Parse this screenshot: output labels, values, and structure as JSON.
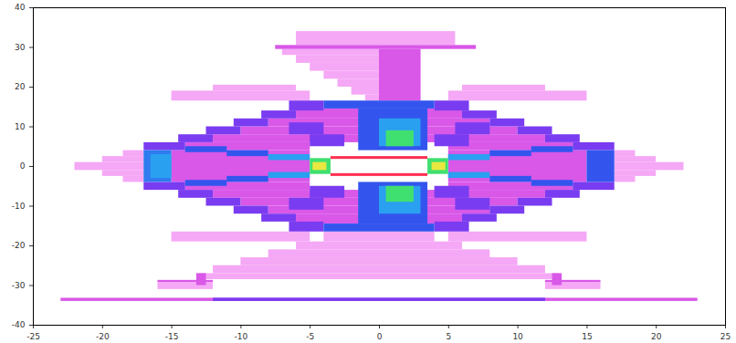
{
  "chart_data": {
    "type": "heatmap",
    "xlim": [
      -25,
      25
    ],
    "xticks": [
      -25,
      -20,
      -15,
      -10,
      -5,
      0,
      5,
      10,
      15,
      20,
      25
    ],
    "ylim": [
      -40,
      40
    ],
    "yticks": [
      -40,
      -30,
      -20,
      -10,
      0,
      10,
      20,
      30,
      40
    ],
    "grid": false,
    "cells": [
      {
        "x0": -6,
        "x1": 5.5,
        "y0": 30.5,
        "y1": 34,
        "value": 1
      },
      {
        "x0": -7,
        "x1": 3,
        "y0": 28,
        "y1": 29.5,
        "value": 1
      },
      {
        "x0": -6,
        "x1": 3,
        "y0": 26,
        "y1": 28,
        "value": 1
      },
      {
        "x0": -5,
        "x1": 3,
        "y0": 24,
        "y1": 26,
        "value": 1
      },
      {
        "x0": -4,
        "x1": 3,
        "y0": 22,
        "y1": 24,
        "value": 1
      },
      {
        "x0": -3,
        "x1": 3,
        "y0": 20,
        "y1": 22,
        "value": 1
      },
      {
        "x0": -2,
        "x1": 3,
        "y0": 18,
        "y1": 20,
        "value": 1
      },
      {
        "x0": -1,
        "x1": 3,
        "y0": 16.5,
        "y1": 18,
        "value": 1
      },
      {
        "x0": -15,
        "x1": -5,
        "y0": 16.5,
        "y1": 19,
        "value": 1
      },
      {
        "x0": 5,
        "x1": 15,
        "y0": 16.5,
        "y1": 19,
        "value": 1
      },
      {
        "x0": -12,
        "x1": -6,
        "y0": 19,
        "y1": 20.5,
        "value": 1
      },
      {
        "x0": 6,
        "x1": 12,
        "y0": 19,
        "y1": 20.5,
        "value": 1
      },
      {
        "x0": -22,
        "x1": -17,
        "y0": -1,
        "y1": 1,
        "value": 1
      },
      {
        "x0": -20,
        "x1": -17,
        "y0": 1,
        "y1": 2.5,
        "value": 1
      },
      {
        "x0": -20,
        "x1": -17,
        "y0": -2.5,
        "y1": -1,
        "value": 1
      },
      {
        "x0": -18.5,
        "x1": -17,
        "y0": 2.5,
        "y1": 4,
        "value": 1
      },
      {
        "x0": -18.5,
        "x1": -17,
        "y0": -4,
        "y1": -2.5,
        "value": 1
      },
      {
        "x0": 17,
        "x1": 22,
        "y0": -1,
        "y1": 1,
        "value": 1
      },
      {
        "x0": 17,
        "x1": 20,
        "y0": 1,
        "y1": 2.5,
        "value": 1
      },
      {
        "x0": 17,
        "x1": 20,
        "y0": -2.5,
        "y1": -1,
        "value": 1
      },
      {
        "x0": 17,
        "x1": 18.5,
        "y0": 2.5,
        "y1": 4,
        "value": 1
      },
      {
        "x0": 17,
        "x1": 18.5,
        "y0": -4,
        "y1": -2.5,
        "value": 1
      },
      {
        "x0": -15,
        "x1": -5,
        "y0": -19,
        "y1": -16.5,
        "value": 1
      },
      {
        "x0": 5,
        "x1": 15,
        "y0": -19,
        "y1": -16.5,
        "value": 1
      },
      {
        "x0": -4,
        "x1": 4,
        "y0": -19,
        "y1": -16.5,
        "value": 1
      },
      {
        "x0": -6,
        "x1": 6,
        "y0": -21,
        "y1": -19,
        "value": 1
      },
      {
        "x0": -8,
        "x1": 8,
        "y0": -23,
        "y1": -21,
        "value": 1
      },
      {
        "x0": -10,
        "x1": 10,
        "y0": -25,
        "y1": -23,
        "value": 1
      },
      {
        "x0": -12,
        "x1": 12,
        "y0": -27,
        "y1": -25,
        "value": 1
      },
      {
        "x0": -13,
        "x1": 13,
        "y0": -28.5,
        "y1": -27,
        "value": 1
      },
      {
        "x0": -16,
        "x1": -12,
        "y0": -31,
        "y1": -29.2,
        "value": 1
      },
      {
        "x0": 12,
        "x1": 16,
        "y0": -31,
        "y1": -29.2,
        "value": 1
      },
      {
        "x0": -7.5,
        "x1": 7,
        "y0": 29.5,
        "y1": 30.5,
        "value": 2
      },
      {
        "x0": 0,
        "x1": 3,
        "y0": 16.5,
        "y1": 29.5,
        "value": 2
      },
      {
        "x0": -6,
        "x1": 6,
        "y0": 12,
        "y1": 14.5,
        "value": 2
      },
      {
        "x0": -8,
        "x1": 8,
        "y0": 10,
        "y1": 12,
        "value": 2
      },
      {
        "x0": -10,
        "x1": 10,
        "y0": 8,
        "y1": 10,
        "value": 2
      },
      {
        "x0": -12,
        "x1": 12,
        "y0": 6,
        "y1": 8,
        "value": 2
      },
      {
        "x0": -14,
        "x1": -5,
        "y0": 4,
        "y1": 6,
        "value": 2
      },
      {
        "x0": 5,
        "x1": 14,
        "y0": 4,
        "y1": 6,
        "value": 2
      },
      {
        "x0": -15,
        "x1": -5,
        "y0": -4,
        "y1": 4,
        "value": 2
      },
      {
        "x0": 5,
        "x1": 15,
        "y0": -4,
        "y1": 4,
        "value": 2
      },
      {
        "x0": -14,
        "x1": -5,
        "y0": -6,
        "y1": -4,
        "value": 2
      },
      {
        "x0": 5,
        "x1": 14,
        "y0": -6,
        "y1": -4,
        "value": 2
      },
      {
        "x0": -12,
        "x1": 12,
        "y0": -8,
        "y1": -6,
        "value": 2
      },
      {
        "x0": -10,
        "x1": 10,
        "y0": -10,
        "y1": -8,
        "value": 2
      },
      {
        "x0": -8,
        "x1": 8,
        "y0": -12,
        "y1": -10,
        "value": 2
      },
      {
        "x0": -6,
        "x1": 6,
        "y0": -14.5,
        "y1": -12,
        "value": 2
      },
      {
        "x0": -13.2,
        "x1": -12.5,
        "y0": -30,
        "y1": -27,
        "value": 2
      },
      {
        "x0": 12.5,
        "x1": 13.2,
        "y0": -30,
        "y1": -27,
        "value": 2
      },
      {
        "x0": -16,
        "x1": -12,
        "y0": -29.2,
        "y1": -28.7,
        "value": 2
      },
      {
        "x0": 12,
        "x1": 16,
        "y0": -29.2,
        "y1": -28.7,
        "value": 2
      },
      {
        "x0": -23,
        "x1": 23,
        "y0": -34,
        "y1": -33.2,
        "value": 2
      },
      {
        "x0": -12,
        "x1": 12,
        "y0": -34,
        "y1": -33.2,
        "value": 3
      },
      {
        "x0": -6.5,
        "x1": -4,
        "y0": 14,
        "y1": 16.5,
        "value": 3
      },
      {
        "x0": -8.5,
        "x1": -6,
        "y0": 12,
        "y1": 14,
        "value": 3
      },
      {
        "x0": -10.5,
        "x1": -8,
        "y0": 10,
        "y1": 12,
        "value": 3
      },
      {
        "x0": -12.5,
        "x1": -10,
        "y0": 8,
        "y1": 10,
        "value": 3
      },
      {
        "x0": -14.5,
        "x1": -12,
        "y0": 6,
        "y1": 8,
        "value": 3
      },
      {
        "x0": -17,
        "x1": -14,
        "y0": 4,
        "y1": 6,
        "value": 3
      },
      {
        "x0": 4,
        "x1": 6.5,
        "y0": 14,
        "y1": 16.5,
        "value": 3
      },
      {
        "x0": 6,
        "x1": 8.5,
        "y0": 12,
        "y1": 14,
        "value": 3
      },
      {
        "x0": 8,
        "x1": 10.5,
        "y0": 10,
        "y1": 12,
        "value": 3
      },
      {
        "x0": 10,
        "x1": 12.5,
        "y0": 8,
        "y1": 10,
        "value": 3
      },
      {
        "x0": 12,
        "x1": 14.5,
        "y0": 6,
        "y1": 8,
        "value": 3
      },
      {
        "x0": 14,
        "x1": 17,
        "y0": 4,
        "y1": 6,
        "value": 3
      },
      {
        "x0": -6.5,
        "x1": -4,
        "y0": -16.5,
        "y1": -14,
        "value": 3
      },
      {
        "x0": -8.5,
        "x1": -6,
        "y0": -14,
        "y1": -12,
        "value": 3
      },
      {
        "x0": -10.5,
        "x1": -8,
        "y0": -12,
        "y1": -10,
        "value": 3
      },
      {
        "x0": -12.5,
        "x1": -10,
        "y0": -10,
        "y1": -8,
        "value": 3
      },
      {
        "x0": -14.5,
        "x1": -12,
        "y0": -8,
        "y1": -6,
        "value": 3
      },
      {
        "x0": -17,
        "x1": -14,
        "y0": -6,
        "y1": -4,
        "value": 3
      },
      {
        "x0": 4,
        "x1": 6.5,
        "y0": -16.5,
        "y1": -14,
        "value": 3
      },
      {
        "x0": 6,
        "x1": 8.5,
        "y0": -14,
        "y1": -12,
        "value": 3
      },
      {
        "x0": 8,
        "x1": 10.5,
        "y0": -12,
        "y1": -10,
        "value": 3
      },
      {
        "x0": 10,
        "x1": 12.5,
        "y0": -10,
        "y1": -8,
        "value": 3
      },
      {
        "x0": 12,
        "x1": 14.5,
        "y0": -8,
        "y1": -6,
        "value": 3
      },
      {
        "x0": 14,
        "x1": 17,
        "y0": -6,
        "y1": -4,
        "value": 3
      },
      {
        "x0": -5,
        "x1": -2.5,
        "y0": 5,
        "y1": 8,
        "value": 3
      },
      {
        "x0": -6.5,
        "x1": -4,
        "y0": 8,
        "y1": 11,
        "value": 3
      },
      {
        "x0": 4,
        "x1": 6.5,
        "y0": 5,
        "y1": 8,
        "value": 3
      },
      {
        "x0": 5.5,
        "x1": 8,
        "y0": 8,
        "y1": 11,
        "value": 3
      },
      {
        "x0": -5,
        "x1": -2.5,
        "y0": -8,
        "y1": -5,
        "value": 3
      },
      {
        "x0": -6.5,
        "x1": -4,
        "y0": -11,
        "y1": -8,
        "value": 3
      },
      {
        "x0": 4,
        "x1": 6.5,
        "y0": -8,
        "y1": -5,
        "value": 3
      },
      {
        "x0": 5.5,
        "x1": 8,
        "y0": -11,
        "y1": -8,
        "value": 3
      },
      {
        "x0": -4,
        "x1": 4,
        "y0": 14.5,
        "y1": 16.5,
        "value": 4
      },
      {
        "x0": -4,
        "x1": 4,
        "y0": -16.5,
        "y1": -14.5,
        "value": 4
      },
      {
        "x0": -17,
        "x1": -15,
        "y0": -4,
        "y1": 4,
        "value": 4.5
      },
      {
        "x0": 15,
        "x1": 17,
        "y0": -4,
        "y1": 4,
        "value": 4
      },
      {
        "x0": -1.5,
        "x1": 3.5,
        "y0": 4,
        "y1": 14.5,
        "value": 4
      },
      {
        "x0": -1.5,
        "x1": 3.5,
        "y0": -14.5,
        "y1": -4,
        "value": 4
      },
      {
        "x0": -14,
        "x1": -11,
        "y0": 3.5,
        "y1": 5,
        "value": 4
      },
      {
        "x0": -11,
        "x1": -8,
        "y0": 2.5,
        "y1": 4,
        "value": 4
      },
      {
        "x0": -14,
        "x1": -11,
        "y0": -5,
        "y1": -3.5,
        "value": 4
      },
      {
        "x0": -11,
        "x1": -8,
        "y0": -4,
        "y1": -2.5,
        "value": 4
      },
      {
        "x0": 11,
        "x1": 14,
        "y0": 3.5,
        "y1": 5,
        "value": 4
      },
      {
        "x0": 8,
        "x1": 11,
        "y0": 2.5,
        "y1": 4,
        "value": 4
      },
      {
        "x0": 11,
        "x1": 14,
        "y0": -5,
        "y1": -3.5,
        "value": 4
      },
      {
        "x0": 8,
        "x1": 11,
        "y0": -4,
        "y1": -2.5,
        "value": 4
      },
      {
        "x0": -8,
        "x1": -5,
        "y0": 1.5,
        "y1": 3,
        "value": 5
      },
      {
        "x0": -8,
        "x1": -5,
        "y0": -3,
        "y1": -1.5,
        "value": 5
      },
      {
        "x0": 5,
        "x1": 8,
        "y0": 1.5,
        "y1": 3,
        "value": 5
      },
      {
        "x0": 5,
        "x1": 8,
        "y0": -3,
        "y1": -1.5,
        "value": 5
      },
      {
        "x0": -16.5,
        "x1": -15,
        "y0": -3,
        "y1": 3,
        "value": 5
      },
      {
        "x0": 0,
        "x1": 3,
        "y0": 5,
        "y1": 12,
        "value": 5
      },
      {
        "x0": 0,
        "x1": 3,
        "y0": -12,
        "y1": -5,
        "value": 5
      },
      {
        "x0": 0.5,
        "x1": 2.5,
        "y0": 5,
        "y1": 9,
        "value": 6
      },
      {
        "x0": 0.5,
        "x1": 2.5,
        "y0": -9,
        "y1": -5,
        "value": 6
      },
      {
        "x0": -5,
        "x1": -3.5,
        "y0": -2,
        "y1": 2,
        "value": 6
      },
      {
        "x0": 3.5,
        "x1": 5,
        "y0": -2,
        "y1": 2,
        "value": 6
      },
      {
        "x0": -4.8,
        "x1": -3.8,
        "y0": -1,
        "y1": 1,
        "value": 7
      },
      {
        "x0": 3.8,
        "x1": 4.8,
        "y0": -1,
        "y1": 1,
        "value": 7
      },
      {
        "x0": -3.5,
        "x1": 3.5,
        "y0": 1.8,
        "y1": 2.5,
        "value": 8
      },
      {
        "x0": -3.5,
        "x1": 3.5,
        "y0": -2.5,
        "y1": -1.8,
        "value": 8
      }
    ]
  }
}
